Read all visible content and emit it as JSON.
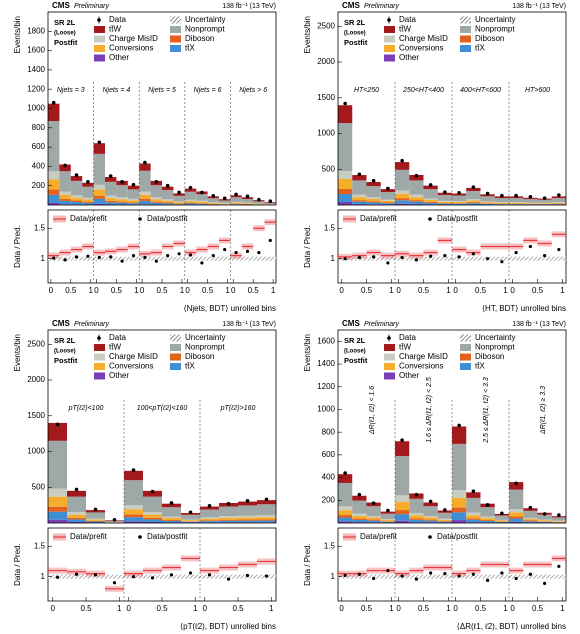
{
  "chart_data": [
    {
      "type": "bar",
      "experiment": "CMS",
      "status": "Preliminary",
      "lumi": "138 fb⁻¹ (13 TeV)",
      "region_label": [
        "SR 2L",
        "(Loose)",
        "Postfit"
      ],
      "ylabel": "Events/bin",
      "ratio_ylabel": "Data / Pred.",
      "xlabel": "⟨Njets, BDT⟩ unrolled bins",
      "regions": [
        "Njets = 3",
        "Njets = 4",
        "Njets = 5",
        "Njets = 6",
        "Njets > 6"
      ],
      "bin_ticks": [
        0,
        0.5,
        1
      ],
      "ylim": [
        0,
        2000
      ],
      "yticks": [
        200,
        400,
        600,
        800,
        1000,
        1200,
        1400,
        1600,
        1800
      ],
      "ratio_ylim": [
        0.6,
        1.8
      ],
      "ratio_yticks": [
        1,
        1.5
      ],
      "uncertainty_label": "Uncertainty",
      "series": [
        {
          "name": "Other",
          "color": "#7a3fb8",
          "values": [
            21,
            8,
            6,
            4,
            12,
            5,
            3,
            3,
            7,
            3,
            2,
            1,
            2,
            2,
            1,
            1,
            1,
            1,
            1,
            1
          ]
        },
        {
          "name": "tt̄X",
          "color": "#3f8fd6",
          "values": [
            84,
            34,
            25,
            18,
            52,
            23,
            20,
            15,
            35,
            20,
            15,
            8,
            14,
            10,
            7,
            3,
            8,
            5,
            3,
            1
          ]
        },
        {
          "name": "Diboson",
          "color": "#e2611c",
          "values": [
            55,
            22,
            15,
            12,
            32,
            15,
            12,
            10,
            21,
            12,
            9,
            6,
            8,
            7,
            4,
            3,
            5,
            4,
            2,
            2
          ]
        },
        {
          "name": "Conversions",
          "color": "#f6ad2c",
          "values": [
            105,
            42,
            30,
            23,
            64,
            29,
            25,
            20,
            43,
            25,
            19,
            12,
            17,
            14,
            9,
            6,
            10,
            8,
            5,
            3
          ]
        },
        {
          "name": "Charge MisID",
          "color": "#c9ccc0",
          "values": [
            85,
            34,
            24,
            18,
            50,
            23,
            20,
            16,
            34,
            20,
            15,
            10,
            13,
            11,
            7,
            5,
            8,
            6,
            4,
            2
          ]
        },
        {
          "name": "Nonprompt",
          "color": "#9ea8a7",
          "values": [
            520,
            210,
            150,
            115,
            320,
            145,
            125,
            98,
            215,
            125,
            95,
            58,
            84,
            68,
            42,
            28,
            48,
            38,
            23,
            13
          ]
        },
        {
          "name": "tt̄W",
          "color": "#a3191c",
          "values": [
            180,
            70,
            50,
            40,
            110,
            50,
            45,
            38,
            75,
            45,
            35,
            25,
            32,
            28,
            20,
            14,
            20,
            18,
            12,
            8
          ]
        }
      ],
      "data": {
        "name": "Data",
        "color": "#000000",
        "values": [
          1060,
          410,
          310,
          240,
          650,
          300,
          240,
          210,
          440,
          240,
          200,
          130,
          180,
          130,
          95,
          70,
          110,
          90,
          55,
          40
        ]
      },
      "ratio_series": [
        {
          "name": "Data/prefit",
          "color": "#e8383b",
          "values": [
            1.05,
            1.1,
            1.15,
            1.2,
            1.1,
            1.12,
            1.15,
            1.2,
            1.08,
            1.1,
            1.2,
            1.25,
            1.1,
            1.15,
            1.2,
            1.3,
            1.05,
            1.2,
            1.5,
            1.6
          ]
        },
        {
          "name": "Data/postfit",
          "color": "#000000",
          "values": [
            1.01,
            0.98,
            1.03,
            1.04,
            1.02,
            1.03,
            0.96,
            1.05,
            1.02,
            0.96,
            1.05,
            1.08,
            1.06,
            0.93,
            1.05,
            1.15,
            1.1,
            1.12,
            1.1,
            1.3
          ]
        }
      ]
    },
    {
      "type": "bar",
      "experiment": "CMS",
      "status": "Preliminary",
      "lumi": "138 fb⁻¹ (13 TeV)",
      "region_label": [
        "SR 2L",
        "(Loose)",
        "Postfit"
      ],
      "ylabel": "Events/bin",
      "ratio_ylabel": "Data / Pred.",
      "xlabel": "⟨HT, BDT⟩ unrolled bins",
      "regions": [
        "HT<250",
        "250<HT<400",
        "400<HT<600",
        "HT>600"
      ],
      "bin_ticks": [
        0,
        0.5,
        1
      ],
      "ylim": [
        0,
        2700
      ],
      "yticks": [
        500,
        1000,
        1500,
        2000,
        2500
      ],
      "ratio_ylim": [
        0.6,
        1.8
      ],
      "ratio_yticks": [
        1,
        1.5
      ],
      "uncertainty_label": "Uncertainty",
      "series": [
        {
          "name": "Other",
          "color": "#7a3fb8",
          "values": [
            42,
            13,
            10,
            7,
            18,
            13,
            8,
            5,
            5,
            7,
            4,
            3,
            3,
            3,
            3,
            3
          ]
        },
        {
          "name": "tt̄X",
          "color": "#3f8fd6",
          "values": [
            112,
            34,
            26,
            18,
            48,
            34,
            22,
            14,
            13,
            19,
            12,
            9,
            9,
            8,
            7,
            9
          ]
        },
        {
          "name": "Diboson",
          "color": "#e2611c",
          "values": [
            70,
            21,
            16,
            11,
            30,
            21,
            13,
            8,
            8,
            12,
            7,
            6,
            6,
            5,
            5,
            6
          ]
        },
        {
          "name": "Conversions",
          "color": "#f6ad2c",
          "values": [
            140,
            42,
            32,
            22,
            60,
            42,
            27,
            17,
            16,
            24,
            15,
            12,
            12,
            10,
            9,
            12
          ]
        },
        {
          "name": "Charge MisID",
          "color": "#c9ccc0",
          "values": [
            112,
            34,
            26,
            18,
            48,
            34,
            22,
            14,
            13,
            19,
            12,
            10,
            10,
            8,
            7,
            10
          ]
        },
        {
          "name": "Nonprompt",
          "color": "#9ea8a7",
          "values": [
            670,
            200,
            154,
            106,
            288,
            200,
            130,
            82,
            77,
            115,
            72,
            58,
            58,
            48,
            43,
            58
          ]
        },
        {
          "name": "tt̄W",
          "color": "#a3191c",
          "values": [
            250,
            75,
            58,
            40,
            108,
            76,
            49,
            31,
            29,
            43,
            27,
            22,
            22,
            18,
            16,
            22
          ]
        }
      ],
      "data": {
        "name": "Data",
        "color": "#000000",
        "values": [
          1420,
          430,
          340,
          230,
          620,
          410,
          280,
          180,
          170,
          250,
          160,
          130,
          130,
          115,
          95,
          140
        ]
      },
      "ratio_series": [
        {
          "name": "Data/prefit",
          "color": "#e8383b",
          "values": [
            1.03,
            1.05,
            1.1,
            1.05,
            1.08,
            1.05,
            1.1,
            1.3,
            1.15,
            1.1,
            1.2,
            1.2,
            1.2,
            1.3,
            1.25,
            1.4
          ]
        },
        {
          "name": "Data/postfit",
          "color": "#000000",
          "values": [
            1.0,
            1.02,
            1.03,
            0.93,
            1.02,
            0.98,
            1.04,
            1.05,
            1.03,
            1.08,
            1.0,
            0.95,
            1.1,
            1.2,
            1.05,
            1.15
          ]
        }
      ]
    },
    {
      "type": "bar",
      "experiment": "CMS",
      "status": "Preliminary",
      "lumi": "138 fb⁻¹ (13 TeV)",
      "region_label": [
        "SR 2L",
        "(Loose)",
        "Postfit"
      ],
      "ylabel": "Events/bin",
      "ratio_ylabel": "Data / Pred.",
      "xlabel": "⟨pT(ℓ2), BDT⟩ unrolled bins",
      "regions": [
        "pT(ℓ2)<100",
        "100<pT(ℓ2)<160",
        "pT(ℓ2)>160"
      ],
      "bin_ticks": [
        0,
        0.5,
        1
      ],
      "ylim": [
        0,
        2700
      ],
      "yticks": [
        500,
        1000,
        1500,
        2000,
        2500
      ],
      "ratio_ylim": [
        0.6,
        1.8
      ],
      "ratio_yticks": [
        1,
        1.5
      ],
      "uncertainty_label": "Uncertainty",
      "series": [
        {
          "name": "Other",
          "color": "#7a3fb8",
          "values": [
            46,
            14,
            7,
            1,
            23,
            14,
            7,
            5,
            8,
            9,
            9,
            9
          ]
        },
        {
          "name": "tt̄X",
          "color": "#3f8fd6",
          "values": [
            112,
            36,
            14,
            4,
            58,
            36,
            22,
            11,
            18,
            23,
            24,
            25
          ]
        },
        {
          "name": "Diboson",
          "color": "#e2611c",
          "values": [
            70,
            22,
            9,
            2,
            37,
            22,
            13,
            7,
            12,
            14,
            15,
            16
          ]
        },
        {
          "name": "Conversions",
          "color": "#f6ad2c",
          "values": [
            140,
            45,
            18,
            4,
            73,
            45,
            27,
            14,
            23,
            28,
            30,
            32
          ]
        },
        {
          "name": "Charge MisID",
          "color": "#c9ccc0",
          "values": [
            112,
            36,
            14,
            3,
            58,
            36,
            22,
            11,
            18,
            22,
            24,
            26
          ]
        },
        {
          "name": "Nonprompt",
          "color": "#9ea8a7",
          "values": [
            670,
            216,
            86,
            19,
            350,
            216,
            130,
            67,
            110,
            134,
            144,
            154
          ]
        },
        {
          "name": "tt̄W",
          "color": "#a3191c",
          "values": [
            250,
            81,
            32,
            7,
            131,
            81,
            49,
            25,
            41,
            50,
            54,
            58
          ]
        }
      ],
      "data": {
        "name": "Data",
        "color": "#000000",
        "values": [
          1380,
          470,
          190,
          45,
          740,
          440,
          280,
          150,
          240,
          270,
          310,
          330
        ]
      },
      "ratio_series": [
        {
          "name": "Data/prefit",
          "color": "#e8383b",
          "values": [
            1.1,
            1.08,
            1.05,
            0.8,
            1.05,
            1.1,
            1.15,
            1.3,
            1.1,
            1.15,
            1.2,
            1.25
          ]
        },
        {
          "name": "Data/postfit",
          "color": "#000000",
          "values": [
            0.99,
            1.04,
            1.03,
            0.9,
            1.0,
            0.98,
            1.03,
            1.06,
            1.03,
            0.96,
            1.02,
            1.01
          ]
        }
      ]
    },
    {
      "type": "bar",
      "experiment": "CMS",
      "status": "Preliminary",
      "lumi": "138 fb⁻¹ (13 TeV)",
      "region_label": [
        "SR 2L",
        "(Loose)",
        "Postfit"
      ],
      "ylabel": "Events/bin",
      "ratio_ylabel": "Data / Pred.",
      "xlabel": "⟨ΔR(ℓ1, ℓ2), BDT⟩ unrolled bins",
      "regions": [
        "ΔR(ℓ1, ℓ2) < 1.6",
        "1.6 ≤ ΔR(ℓ1, ℓ2) < 2.5",
        "2.5 ≤ ΔR(ℓ1, ℓ2) < 3.3",
        "ΔR(ℓ1, ℓ2) ≥ 3.3"
      ],
      "bin_ticks": [
        0,
        0.5,
        1
      ],
      "ylim": [
        0,
        1700
      ],
      "yticks": [
        200,
        400,
        600,
        800,
        1000,
        1200,
        1400,
        1600
      ],
      "ratio_ylim": [
        0.6,
        1.8
      ],
      "ratio_yticks": [
        1,
        1.5
      ],
      "uncertainty_label": "Uncertainty",
      "series": [
        {
          "name": "Other",
          "color": "#7a3fb8",
          "values": [
            14,
            8,
            7,
            3,
            20,
            7,
            7,
            3,
            26,
            7,
            5,
            3,
            10,
            4,
            3,
            2
          ]
        },
        {
          "name": "tt̄X",
          "color": "#3f8fd6",
          "values": [
            34,
            19,
            14,
            8,
            58,
            21,
            14,
            9,
            68,
            22,
            13,
            7,
            29,
            11,
            7,
            4
          ]
        },
        {
          "name": "Diboson",
          "color": "#e2611c",
          "values": [
            22,
            12,
            9,
            5,
            36,
            13,
            9,
            5,
            42,
            13,
            8,
            4,
            18,
            7,
            5,
            3
          ]
        },
        {
          "name": "Conversions",
          "color": "#f6ad2c",
          "values": [
            43,
            24,
            18,
            10,
            72,
            26,
            18,
            11,
            85,
            27,
            17,
            8,
            36,
            13,
            9,
            6
          ]
        },
        {
          "name": "Charge MisID",
          "color": "#c9ccc0",
          "values": [
            34,
            19,
            14,
            8,
            58,
            21,
            14,
            9,
            68,
            22,
            14,
            6,
            29,
            10,
            7,
            5
          ]
        },
        {
          "name": "Nonprompt",
          "color": "#9ea8a7",
          "values": [
            206,
            115,
            86,
            48,
            346,
            125,
            86,
            53,
            408,
            130,
            82,
            38,
            173,
            62,
            43,
            29
          ]
        },
        {
          "name": "tt̄W",
          "color": "#a3191c",
          "values": [
            77,
            43,
            32,
            18,
            130,
            47,
            32,
            20,
            153,
            49,
            31,
            14,
            65,
            23,
            16,
            11
          ]
        }
      ],
      "data": {
        "name": "Data",
        "color": "#000000",
        "values": [
          440,
          250,
          175,
          110,
          730,
          250,
          190,
          115,
          860,
          280,
          160,
          85,
          350,
          135,
          80,
          70
        ]
      },
      "ratio_series": [
        {
          "name": "Data/prefit",
          "color": "#e8383b",
          "values": [
            1.05,
            1.05,
            1.1,
            1.1,
            1.05,
            1.1,
            1.15,
            1.15,
            1.05,
            1.1,
            1.2,
            1.2,
            1.1,
            1.2,
            1.2,
            1.3
          ]
        },
        {
          "name": "Data/postfit",
          "color": "#000000",
          "values": [
            1.02,
            1.04,
            0.97,
            1.1,
            1.01,
            0.96,
            1.06,
            1.05,
            1.01,
            1.04,
            0.94,
            1.06,
            0.97,
            1.04,
            0.89,
            1.17
          ]
        }
      ]
    }
  ]
}
